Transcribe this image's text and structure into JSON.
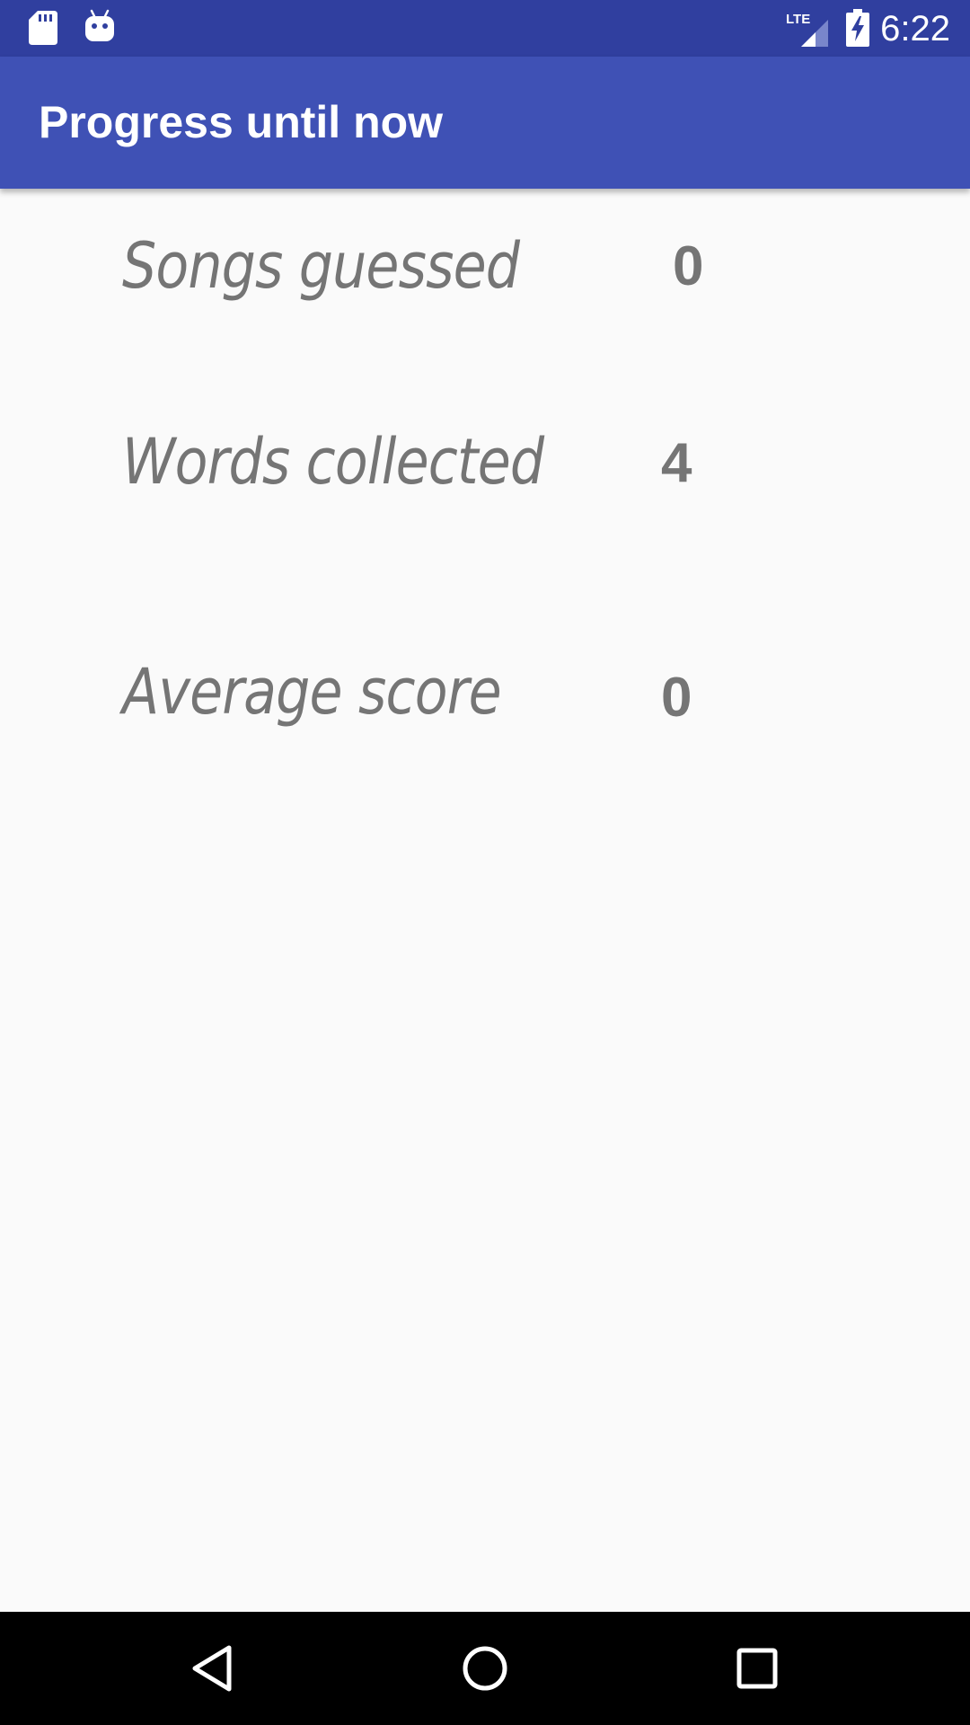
{
  "status_bar": {
    "time": "6:22",
    "network": "LTE",
    "icons": [
      "sd-card-icon",
      "android-icon",
      "lte-signal-icon",
      "battery-charging-icon"
    ]
  },
  "app_bar": {
    "title": "Progress until now"
  },
  "stats": [
    {
      "label": "Songs guessed",
      "value": "0"
    },
    {
      "label": "Words collected",
      "value": "4"
    },
    {
      "label": "Average score",
      "value": "0"
    }
  ],
  "navigation": {
    "icons": [
      "back-icon",
      "home-icon",
      "recents-icon"
    ]
  },
  "colors": {
    "status_bar": "#303F9F",
    "app_bar": "#3F51B5",
    "background": "#FAFAFA",
    "stat_text": "#757575",
    "nav_bar": "#000000"
  }
}
